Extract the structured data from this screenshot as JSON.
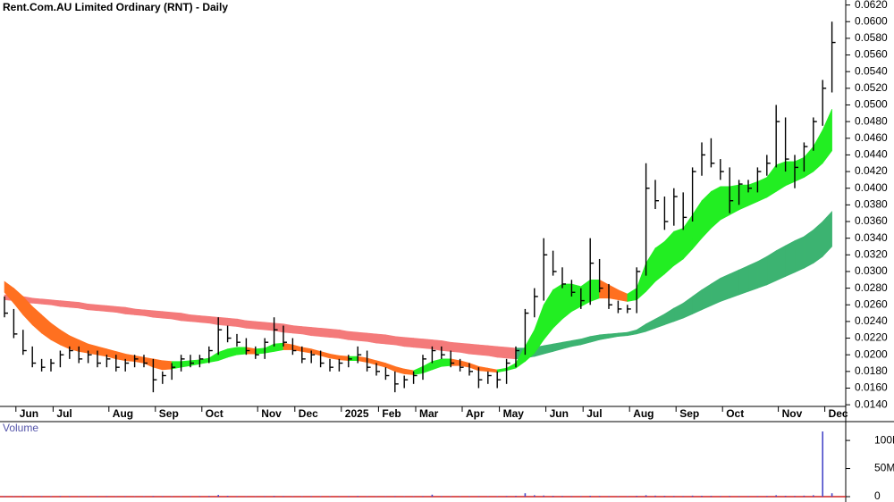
{
  "chart_data": [
    {
      "type": "hlc",
      "title": "Rent.Com.AU Limited Ordinary (RNT) - Daily",
      "color": "#000000",
      "categories": [
        null,
        null,
        "Jun",
        null,
        null,
        null,
        "Jul",
        null,
        null,
        null,
        null,
        null,
        "Aug",
        null,
        null,
        null,
        null,
        "Sep",
        null,
        null,
        null,
        null,
        "Oct",
        null,
        null,
        null,
        null,
        null,
        "Nov",
        null,
        null,
        null,
        "Dec",
        null,
        null,
        null,
        null,
        "2025",
        null,
        null,
        null,
        "Feb",
        null,
        null,
        null,
        "Mar",
        null,
        null,
        null,
        null,
        "Apr",
        null,
        null,
        null,
        "May",
        null,
        null,
        null,
        null,
        "Jun",
        null,
        null,
        null,
        "Jul",
        null,
        null,
        null,
        null,
        "Aug",
        null,
        null,
        null,
        null,
        "Sep",
        null,
        null,
        null,
        null,
        "Oct",
        null,
        null,
        null,
        null,
        null,
        "Nov",
        null,
        null,
        null,
        null,
        "Dec"
      ],
      "high": [
        0.027,
        0.0255,
        0.023,
        0.021,
        0.0195,
        0.0195,
        0.0205,
        0.021,
        0.021,
        0.0205,
        0.0205,
        0.02,
        0.02,
        0.0195,
        0.02,
        0.02,
        0.0195,
        0.018,
        0.019,
        0.02,
        0.02,
        0.02,
        0.021,
        0.0245,
        0.0235,
        0.0225,
        0.022,
        0.021,
        0.022,
        0.0245,
        0.0235,
        0.022,
        0.021,
        0.0205,
        0.0205,
        0.0195,
        0.0195,
        0.02,
        0.021,
        0.0205,
        0.019,
        0.0185,
        0.018,
        0.0175,
        0.018,
        0.02,
        0.021,
        0.021,
        0.0205,
        0.0195,
        0.019,
        0.0185,
        0.018,
        0.018,
        0.0195,
        0.021,
        0.0255,
        0.028,
        0.034,
        0.0325,
        0.0305,
        0.029,
        0.028,
        0.034,
        0.0315,
        0.0285,
        0.0265,
        0.026,
        0.0305,
        0.043,
        0.041,
        0.039,
        0.04,
        0.0395,
        0.0425,
        0.0455,
        0.046,
        0.0435,
        0.0425,
        0.041,
        0.041,
        0.0425,
        0.044,
        0.05,
        0.0485,
        0.044,
        0.0455,
        0.0485,
        0.053,
        0.06
      ],
      "low": [
        0.0245,
        0.022,
        0.02,
        0.0185,
        0.018,
        0.018,
        0.0185,
        0.0195,
        0.019,
        0.019,
        0.0185,
        0.0185,
        0.018,
        0.018,
        0.0185,
        0.0185,
        0.0155,
        0.0165,
        0.017,
        0.018,
        0.0185,
        0.0185,
        0.019,
        0.02,
        0.0215,
        0.021,
        0.02,
        0.0195,
        0.0195,
        0.021,
        0.021,
        0.02,
        0.019,
        0.019,
        0.0185,
        0.018,
        0.018,
        0.0185,
        0.019,
        0.018,
        0.0175,
        0.017,
        0.0155,
        0.016,
        0.0165,
        0.017,
        0.019,
        0.0195,
        0.0185,
        0.018,
        0.0175,
        0.016,
        0.0165,
        0.016,
        0.0165,
        0.0185,
        0.02,
        0.0245,
        0.0265,
        0.0295,
        0.028,
        0.027,
        0.0255,
        0.026,
        0.0275,
        0.0255,
        0.025,
        0.025,
        0.025,
        0.0295,
        0.0375,
        0.035,
        0.0355,
        0.035,
        0.036,
        0.0415,
        0.0425,
        0.041,
        0.037,
        0.038,
        0.0395,
        0.0395,
        0.0415,
        0.0425,
        0.042,
        0.04,
        0.042,
        0.0445,
        0.0475,
        0.0515
      ],
      "close": [
        0.025,
        0.0225,
        0.0205,
        0.019,
        0.0185,
        0.019,
        0.02,
        0.0205,
        0.0195,
        0.02,
        0.019,
        0.0195,
        0.0185,
        0.019,
        0.0195,
        0.019,
        0.017,
        0.0175,
        0.0185,
        0.0195,
        0.019,
        0.0195,
        0.0205,
        0.023,
        0.022,
        0.0215,
        0.0205,
        0.02,
        0.0215,
        0.023,
        0.0215,
        0.0205,
        0.0195,
        0.02,
        0.019,
        0.0185,
        0.019,
        0.0195,
        0.02,
        0.0185,
        0.018,
        0.0175,
        0.0165,
        0.017,
        0.0175,
        0.0195,
        0.0205,
        0.02,
        0.019,
        0.0185,
        0.018,
        0.017,
        0.0175,
        0.017,
        0.019,
        0.0205,
        0.025,
        0.027,
        0.032,
        0.03,
        0.0285,
        0.0275,
        0.0265,
        0.031,
        0.028,
        0.026,
        0.0255,
        0.0255,
        0.03,
        0.04,
        0.0385,
        0.036,
        0.039,
        0.0365,
        0.042,
        0.044,
        0.043,
        0.042,
        0.0385,
        0.0405,
        0.04,
        0.042,
        0.043,
        0.048,
        0.0435,
        0.0425,
        0.045,
        0.048,
        0.052,
        0.0575
      ],
      "bands": [
        {
          "color": "#3cb371",
          "down_color": "#f47a7a",
          "upper": [
            0.0272,
            0.0271,
            0.027,
            0.0268,
            0.0267,
            0.0266,
            0.0265,
            0.0264,
            0.0263,
            0.0261,
            0.026,
            0.0259,
            0.0258,
            0.0257,
            0.0255,
            0.0254,
            0.0253,
            0.0252,
            0.0251,
            0.025,
            0.0248,
            0.0247,
            0.0246,
            0.0245,
            0.0244,
            0.0243,
            0.0241,
            0.024,
            0.0239,
            0.0238,
            0.0237,
            0.0235,
            0.0234,
            0.0233,
            0.0232,
            0.0231,
            0.023,
            0.0228,
            0.0227,
            0.0226,
            0.0225,
            0.0224,
            0.0222,
            0.0221,
            0.022,
            0.0219,
            0.0218,
            0.0217,
            0.0215,
            0.0214,
            0.0213,
            0.0212,
            0.0211,
            0.021,
            0.0209,
            0.0208,
            0.0208,
            0.0209,
            0.0211,
            0.0213,
            0.0215,
            0.0217,
            0.0219,
            0.0222,
            0.0224,
            0.0225,
            0.0226,
            0.0227,
            0.023,
            0.0237,
            0.0243,
            0.0249,
            0.0256,
            0.0262,
            0.027,
            0.0278,
            0.0285,
            0.0292,
            0.0297,
            0.0302,
            0.0307,
            0.0312,
            0.0318,
            0.0325,
            0.0331,
            0.0337,
            0.0342,
            0.035,
            0.036,
            0.0372
          ],
          "lower": [
            0.0266,
            0.0265,
            0.0263,
            0.0262,
            0.0261,
            0.026,
            0.0258,
            0.0257,
            0.0256,
            0.0254,
            0.0253,
            0.0252,
            0.0251,
            0.0249,
            0.0248,
            0.0247,
            0.0245,
            0.0244,
            0.0243,
            0.0241,
            0.024,
            0.0239,
            0.0238,
            0.0236,
            0.0235,
            0.0234,
            0.0232,
            0.0231,
            0.023,
            0.0229,
            0.0227,
            0.0226,
            0.0225,
            0.0223,
            0.0222,
            0.0221,
            0.022,
            0.0218,
            0.0217,
            0.0216,
            0.0214,
            0.0213,
            0.0212,
            0.021,
            0.0209,
            0.0208,
            0.0207,
            0.0205,
            0.0204,
            0.0203,
            0.0201,
            0.02,
            0.0199,
            0.0197,
            0.0196,
            0.0195,
            0.0196,
            0.0198,
            0.0201,
            0.0204,
            0.0207,
            0.021,
            0.0212,
            0.0215,
            0.0218,
            0.022,
            0.0222,
            0.0223,
            0.0225,
            0.0228,
            0.0232,
            0.0236,
            0.024,
            0.0244,
            0.0249,
            0.0254,
            0.0259,
            0.0264,
            0.0268,
            0.0272,
            0.0276,
            0.028,
            0.0284,
            0.0289,
            0.0294,
            0.0299,
            0.0304,
            0.031,
            0.0318,
            0.033
          ]
        },
        {
          "color": "#22ee22",
          "down_color": "#ff7020",
          "upper": [
            0.0288,
            0.028,
            0.027,
            0.0258,
            0.0248,
            0.0238,
            0.023,
            0.0223,
            0.0218,
            0.0213,
            0.021,
            0.0207,
            0.0204,
            0.0201,
            0.0199,
            0.0197,
            0.0195,
            0.0193,
            0.0192,
            0.0192,
            0.0193,
            0.0194,
            0.0196,
            0.0203,
            0.0207,
            0.0209,
            0.0209,
            0.0207,
            0.0208,
            0.0213,
            0.0214,
            0.0212,
            0.0209,
            0.0207,
            0.0204,
            0.0201,
            0.0199,
            0.0198,
            0.0198,
            0.0196,
            0.0193,
            0.019,
            0.0186,
            0.0183,
            0.0181,
            0.0186,
            0.0192,
            0.0195,
            0.0195,
            0.0193,
            0.019,
            0.0186,
            0.0184,
            0.0182,
            0.0184,
            0.019,
            0.021,
            0.023,
            0.026,
            0.0278,
            0.0285,
            0.0285,
            0.0282,
            0.029,
            0.029,
            0.0284,
            0.0278,
            0.0273,
            0.028,
            0.031,
            0.0328,
            0.0336,
            0.0348,
            0.0352,
            0.0368,
            0.0385,
            0.0396,
            0.0402,
            0.0402,
            0.0404,
            0.0404,
            0.0408,
            0.0413,
            0.0428,
            0.0432,
            0.0432,
            0.0437,
            0.045,
            0.047,
            0.0495
          ],
          "lower": [
            0.0275,
            0.0262,
            0.0248,
            0.0236,
            0.0226,
            0.0218,
            0.0212,
            0.0207,
            0.0204,
            0.0202,
            0.02,
            0.0198,
            0.0195,
            0.0193,
            0.0192,
            0.019,
            0.0185,
            0.0182,
            0.0183,
            0.0185,
            0.0187,
            0.0189,
            0.0191,
            0.0193,
            0.0197,
            0.02,
            0.0201,
            0.0201,
            0.0202,
            0.0204,
            0.0206,
            0.0206,
            0.0204,
            0.0202,
            0.0199,
            0.0196,
            0.0194,
            0.0193,
            0.0193,
            0.0191,
            0.0188,
            0.0185,
            0.018,
            0.0177,
            0.0176,
            0.0178,
            0.0182,
            0.0186,
            0.0187,
            0.0187,
            0.0185,
            0.0181,
            0.018,
            0.0179,
            0.0181,
            0.0184,
            0.0192,
            0.0202,
            0.0218,
            0.0232,
            0.0243,
            0.0252,
            0.0258,
            0.0264,
            0.0268,
            0.0268,
            0.0266,
            0.0264,
            0.0266,
            0.0276,
            0.0288,
            0.0297,
            0.0307,
            0.0315,
            0.0327,
            0.034,
            0.0352,
            0.0362,
            0.0368,
            0.0374,
            0.0379,
            0.0384,
            0.0389,
            0.0396,
            0.0403,
            0.0408,
            0.0413,
            0.042,
            0.043,
            0.0445
          ]
        }
      ],
      "ylim": [
        0.0138,
        0.0626
      ],
      "yticks": [
        {
          "value": 0.014,
          "label": "0.0140"
        },
        {
          "value": 0.016,
          "label": "0.0160"
        },
        {
          "value": 0.018,
          "label": "0.0180"
        },
        {
          "value": 0.02,
          "label": "0.0200"
        },
        {
          "value": 0.022,
          "label": "0.0220"
        },
        {
          "value": 0.024,
          "label": "0.0240"
        },
        {
          "value": 0.026,
          "label": "0.0260"
        },
        {
          "value": 0.028,
          "label": "0.0280"
        },
        {
          "value": 0.03,
          "label": "0.0300"
        },
        {
          "value": 0.032,
          "label": "0.0320"
        },
        {
          "value": 0.034,
          "label": "0.0340"
        },
        {
          "value": 0.036,
          "label": "0.0360"
        },
        {
          "value": 0.038,
          "label": "0.0380"
        },
        {
          "value": 0.04,
          "label": "0.0400"
        },
        {
          "value": 0.042,
          "label": "0.0420"
        },
        {
          "value": 0.044,
          "label": "0.0440"
        },
        {
          "value": 0.046,
          "label": "0.0460"
        },
        {
          "value": 0.048,
          "label": "0.0480"
        },
        {
          "value": 0.05,
          "label": "0.0500"
        },
        {
          "value": 0.052,
          "label": "0.0520"
        },
        {
          "value": 0.054,
          "label": "0.0540"
        },
        {
          "value": 0.056,
          "label": "0.0560"
        },
        {
          "value": 0.058,
          "label": "0.0580"
        },
        {
          "value": 0.06,
          "label": "0.0600"
        },
        {
          "value": 0.062,
          "label": "0.0620"
        }
      ]
    },
    {
      "type": "bar",
      "title": "Volume",
      "color": "#4848c8",
      "values": [
        900000,
        800000,
        1000000,
        700000,
        900000,
        800000,
        1100000,
        900000,
        700000,
        800000,
        900000,
        1000000,
        800000,
        900000,
        700000,
        800000,
        1200000,
        900000,
        800000,
        700000,
        900000,
        1000000,
        1200000,
        3000000,
        1500000,
        900000,
        800000,
        700000,
        900000,
        1400000,
        1000000,
        800000,
        700000,
        900000,
        800000,
        700000,
        600000,
        900000,
        1200000,
        800000,
        700000,
        800000,
        1000000,
        700000,
        800000,
        1000000,
        3500000,
        900000,
        800000,
        700000,
        800000,
        900000,
        700000,
        800000,
        1200000,
        1500000,
        6000000,
        2500000,
        2000000,
        1500000,
        1200000,
        1000000,
        900000,
        1600000,
        1200000,
        900000,
        800000,
        800000,
        1500000,
        2500000,
        1800000,
        1500000,
        1200000,
        1000000,
        1800000,
        1600000,
        1400000,
        1000000,
        1200000,
        900000,
        900000,
        1000000,
        1200000,
        2500000,
        1600000,
        1300000,
        1800000,
        2500000,
        116000000,
        6000000
      ],
      "ylim": [
        0,
        124000000
      ],
      "yticks": [
        0,
        {
          "value": 50000000,
          "label": "50M"
        },
        {
          "value": 100000000,
          "label": "100M"
        }
      ]
    }
  ]
}
